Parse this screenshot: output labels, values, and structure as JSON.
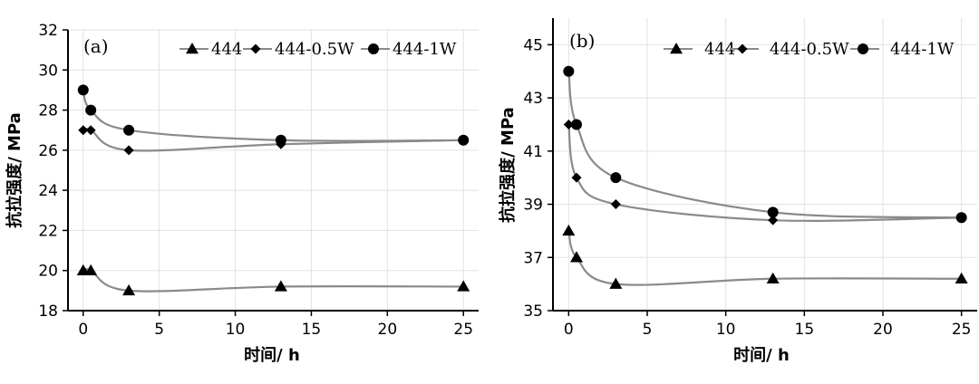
{
  "chart_data": [
    {
      "type": "line",
      "panel_label": "(a)",
      "xlabel": "时间/ h",
      "ylabel": "抗拉强度/ MPa",
      "xlim": [
        -1,
        26
      ],
      "ylim": [
        18,
        32
      ],
      "xticks": [
        0,
        5,
        10,
        15,
        20,
        25
      ],
      "yticks": [
        18,
        20,
        22,
        24,
        26,
        28,
        30,
        32
      ],
      "grid": true,
      "legend_position": "top-right",
      "series": [
        {
          "name": "444",
          "marker": "triangle",
          "x": [
            0,
            0.5,
            3,
            13,
            25
          ],
          "y": [
            20,
            20,
            19,
            19.2,
            19.2
          ]
        },
        {
          "name": "444-0.5W",
          "marker": "diamond",
          "x": [
            0,
            0.5,
            3,
            13,
            25
          ],
          "y": [
            27,
            27,
            26,
            26.3,
            26.5
          ]
        },
        {
          "name": "444-1W",
          "marker": "circle",
          "x": [
            0,
            0.5,
            3,
            13,
            25
          ],
          "y": [
            29,
            28,
            27,
            26.5,
            26.5
          ]
        }
      ]
    },
    {
      "type": "line",
      "panel_label": "(b)",
      "xlabel": "时间/ h",
      "ylabel": "抗拉强度/ MPa",
      "xlim": [
        -1,
        26
      ],
      "ylim": [
        35,
        46
      ],
      "xticks": [
        0,
        5,
        10,
        15,
        20,
        25
      ],
      "yticks": [
        35,
        37,
        39,
        41,
        43,
        45
      ],
      "grid": true,
      "legend_position": "top",
      "series": [
        {
          "name": "444",
          "marker": "triangle",
          "x": [
            0,
            0.5,
            3,
            13,
            25
          ],
          "y": [
            38,
            37,
            36,
            36.2,
            36.2
          ]
        },
        {
          "name": "444-0.5W",
          "marker": "diamond",
          "x": [
            0,
            0.5,
            3,
            13,
            25
          ],
          "y": [
            42,
            40,
            39,
            38.4,
            38.5
          ]
        },
        {
          "name": "444-1W",
          "marker": "circle",
          "x": [
            0,
            0.5,
            3,
            13,
            25
          ],
          "y": [
            44,
            42,
            40,
            38.7,
            38.5
          ]
        }
      ]
    }
  ]
}
